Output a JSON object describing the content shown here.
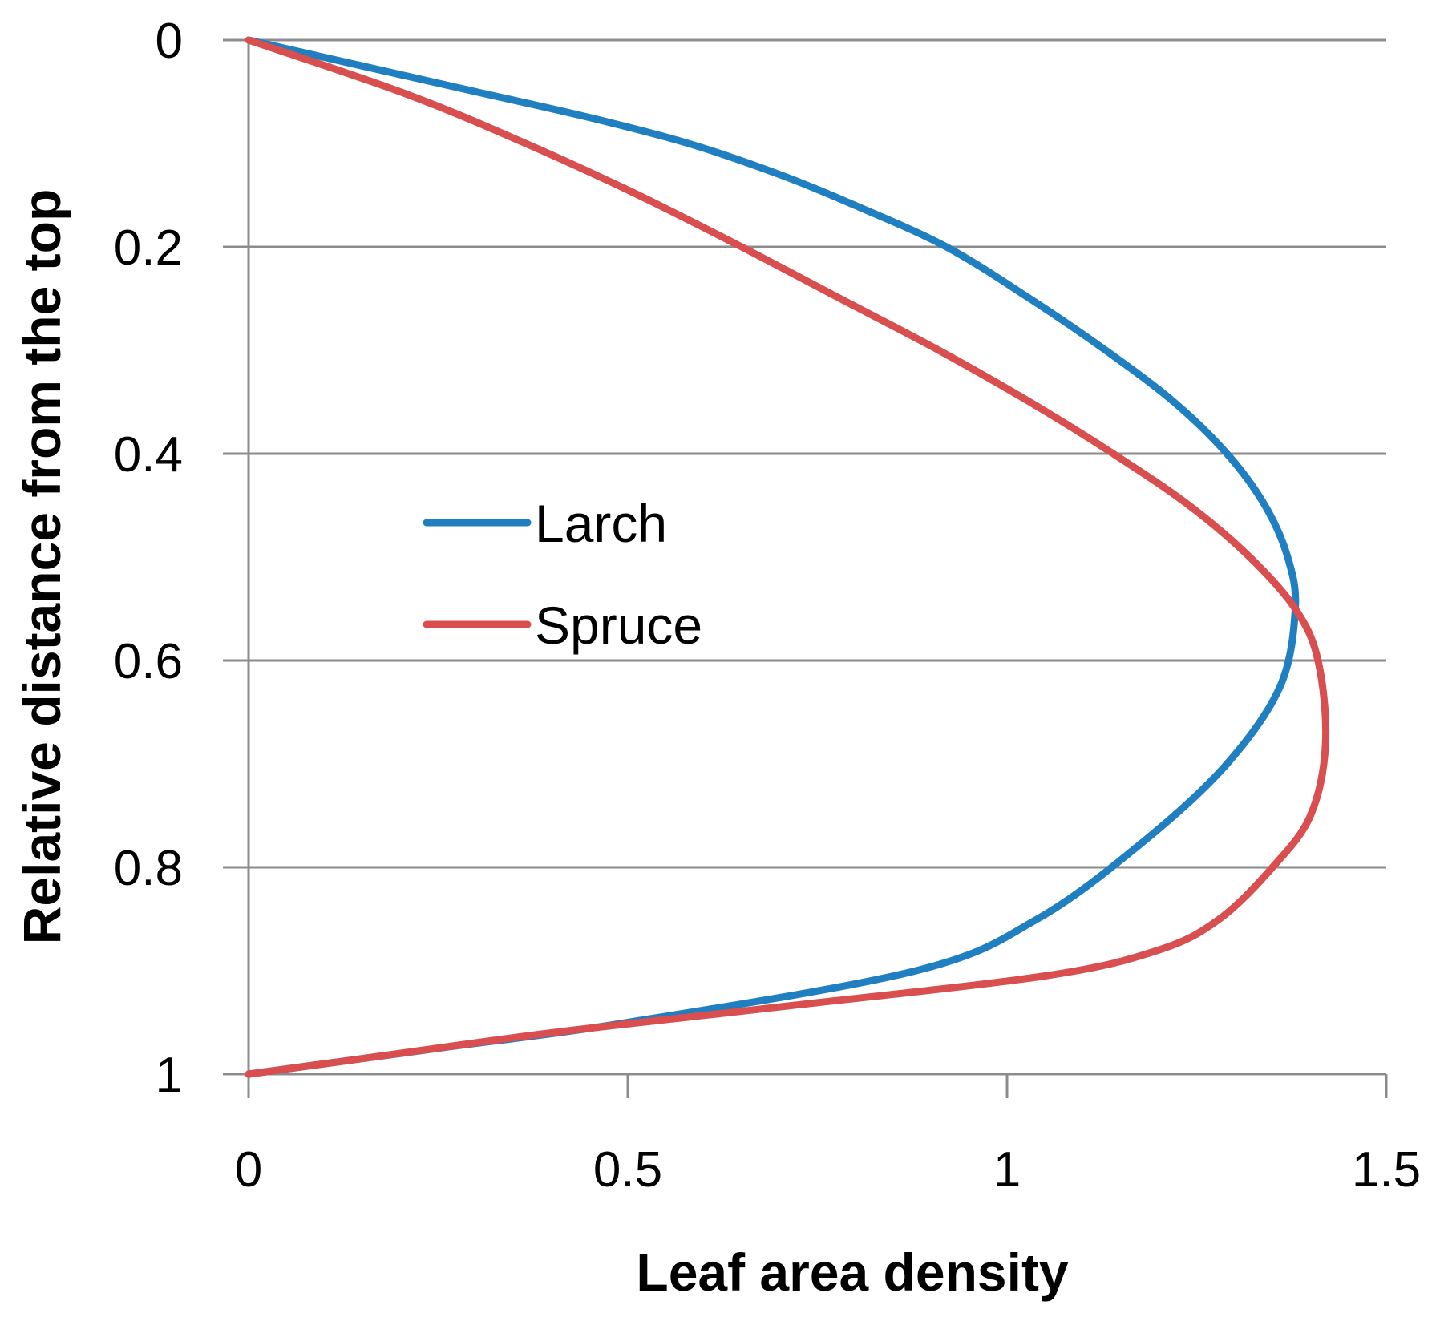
{
  "chart_data": {
    "type": "line",
    "title": "",
    "xlabel": "Leaf area density",
    "ylabel": "Relative distance from the top",
    "xlim": [
      0,
      1.5
    ],
    "ylim": [
      0,
      1
    ],
    "y_inverted": true,
    "x_ticks": [
      "0",
      "0.5",
      "1",
      "1.5"
    ],
    "y_ticks": [
      "0",
      "0.2",
      "0.4",
      "0.6",
      "0.8",
      "1"
    ],
    "x_tick_values": [
      0,
      0.5,
      1,
      1.5
    ],
    "y_tick_values": [
      0,
      0.2,
      0.4,
      0.6,
      0.8,
      1
    ],
    "grid": "horizontal",
    "legend_position": "center-left",
    "series": [
      {
        "name": "Larch",
        "color": "#1f7fc0",
        "points": [
          {
            "x": 0,
            "y": 0
          },
          {
            "x": 0.15,
            "y": 0.025
          },
          {
            "x": 0.3,
            "y": 0.05
          },
          {
            "x": 0.45,
            "y": 0.075
          },
          {
            "x": 0.58,
            "y": 0.1
          },
          {
            "x": 0.7,
            "y": 0.13
          },
          {
            "x": 0.8,
            "y": 0.16
          },
          {
            "x": 0.92,
            "y": 0.2
          },
          {
            "x": 1.03,
            "y": 0.25
          },
          {
            "x": 1.13,
            "y": 0.3
          },
          {
            "x": 1.22,
            "y": 0.35
          },
          {
            "x": 1.29,
            "y": 0.4
          },
          {
            "x": 1.34,
            "y": 0.45
          },
          {
            "x": 1.37,
            "y": 0.5
          },
          {
            "x": 1.38,
            "y": 0.55
          },
          {
            "x": 1.36,
            "y": 0.625
          },
          {
            "x": 1.29,
            "y": 0.7
          },
          {
            "x": 1.18,
            "y": 0.775
          },
          {
            "x": 1.04,
            "y": 0.85
          },
          {
            "x": 0.88,
            "y": 0.9
          },
          {
            "x": 0.5,
            "y": 0.95
          },
          {
            "x": 0.25,
            "y": 0.975
          },
          {
            "x": 0,
            "y": 1
          }
        ]
      },
      {
        "name": "Spruce",
        "color": "#d94f4f",
        "points": [
          {
            "x": 0,
            "y": 0
          },
          {
            "x": 0.2,
            "y": 0.05
          },
          {
            "x": 0.35,
            "y": 0.095
          },
          {
            "x": 0.5,
            "y": 0.145
          },
          {
            "x": 0.65,
            "y": 0.2
          },
          {
            "x": 0.78,
            "y": 0.25
          },
          {
            "x": 0.91,
            "y": 0.3
          },
          {
            "x": 1.03,
            "y": 0.35
          },
          {
            "x": 1.14,
            "y": 0.4
          },
          {
            "x": 1.24,
            "y": 0.45
          },
          {
            "x": 1.32,
            "y": 0.5
          },
          {
            "x": 1.38,
            "y": 0.55
          },
          {
            "x": 1.41,
            "y": 0.6
          },
          {
            "x": 1.42,
            "y": 0.68
          },
          {
            "x": 1.4,
            "y": 0.75
          },
          {
            "x": 1.35,
            "y": 0.8
          },
          {
            "x": 1.28,
            "y": 0.85
          },
          {
            "x": 1.2,
            "y": 0.88
          },
          {
            "x": 1.05,
            "y": 0.905
          },
          {
            "x": 0.7,
            "y": 0.935
          },
          {
            "x": 0.4,
            "y": 0.96
          },
          {
            "x": 0.15,
            "y": 0.985
          },
          {
            "x": 0,
            "y": 1
          }
        ]
      }
    ]
  }
}
